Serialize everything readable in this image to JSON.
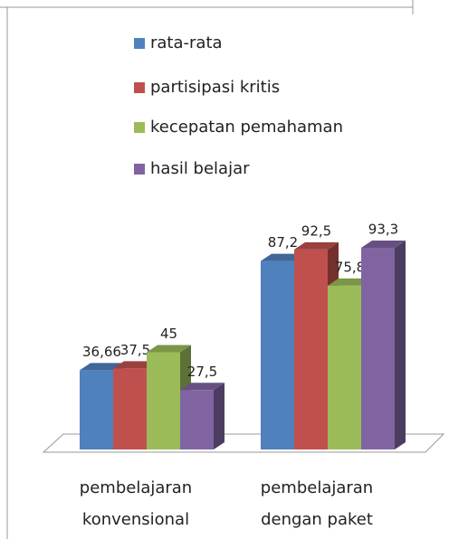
{
  "chart_data": {
    "type": "bar3d",
    "categories": [
      "pembelajaran\nkonvensional",
      "pembelajaran\ndengan paket"
    ],
    "series": [
      {
        "name": "rata-rata",
        "color": "#4f81bd",
        "values": [
          36.66,
          87.2
        ],
        "value_labels": [
          "36,66",
          "87,2"
        ]
      },
      {
        "name": "partisipasi kritis",
        "color": "#c0504d",
        "values": [
          37.5,
          92.5
        ],
        "value_labels": [
          "37,5",
          "92,5"
        ]
      },
      {
        "name": "kecepatan pemahaman",
        "color": "#9bbb59",
        "values": [
          45,
          75.8
        ],
        "value_labels": [
          "45",
          "75,8"
        ]
      },
      {
        "name": "hasil belajar",
        "color": "#8064a2",
        "values": [
          27.5,
          93.3
        ],
        "value_labels": [
          "27,5",
          "93,3"
        ]
      }
    ]
  }
}
